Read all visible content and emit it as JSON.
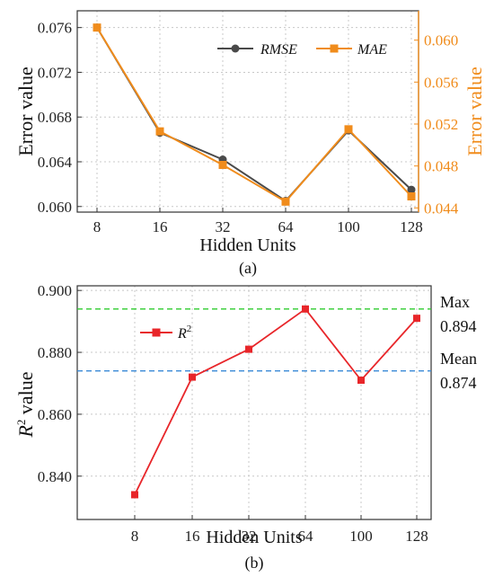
{
  "chart_data": [
    {
      "type": "line",
      "categories": [
        "8",
        "16",
        "32",
        "64",
        "100",
        "128"
      ],
      "xlabel": "Hidden Units",
      "ylabel": "Error value",
      "y2label": "Error value",
      "ylim": [
        0.0595,
        0.0775
      ],
      "y2lim": [
        0.0436,
        0.0628
      ],
      "yticks": [
        "0.060",
        "0.064",
        "0.068",
        "0.072",
        "0.076"
      ],
      "y2ticks": [
        "0.044",
        "0.048",
        "0.052",
        "0.056",
        "0.060"
      ],
      "caption": "(a)",
      "legend_position": "top-right",
      "grid": true,
      "series": [
        {
          "name": "RMSE",
          "axis": "left",
          "color": "#4a4a4a",
          "marker": "circle",
          "values": [
            0.076,
            0.0666,
            0.0642,
            0.0605,
            0.0668,
            0.0615
          ]
        },
        {
          "name": "MAE",
          "axis": "right",
          "color": "#f08c1c",
          "marker": "square",
          "values": [
            0.0612,
            0.0513,
            0.0481,
            0.0446,
            0.0515,
            0.0451
          ]
        }
      ]
    },
    {
      "type": "line",
      "categories": [
        "8",
        "16",
        "32",
        "64",
        "100",
        "128"
      ],
      "xlabel": "Hidden Units",
      "ylabel": "R2 value",
      "ylim": [
        0.826,
        0.9015
      ],
      "yticks": [
        "0.840",
        "0.860",
        "0.880",
        "0.900"
      ],
      "caption": "(b)",
      "legend_position": "top-left",
      "grid": true,
      "series": [
        {
          "name": "R2",
          "color": "#e8262a",
          "marker": "square",
          "values": [
            0.834,
            0.872,
            0.881,
            0.894,
            0.871,
            0.891
          ]
        }
      ],
      "reference_lines": [
        {
          "label": "Max",
          "value_label": "0.894",
          "value": 0.894,
          "color": "#2ecc2e"
        },
        {
          "label": "Mean",
          "value_label": "0.874",
          "value": 0.874,
          "color": "#3a8ad6"
        }
      ]
    }
  ]
}
